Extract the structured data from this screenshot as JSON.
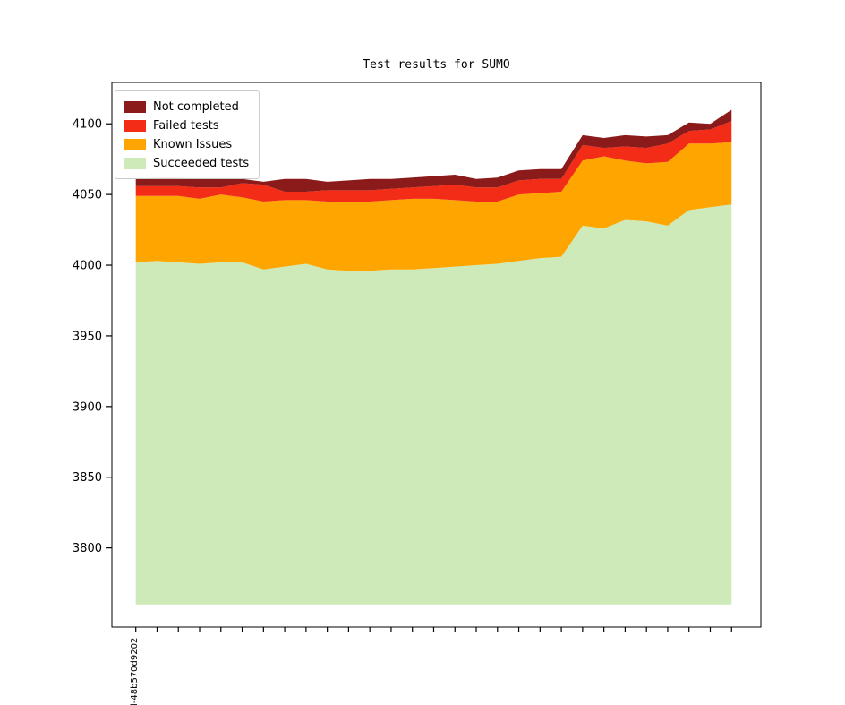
{
  "title": "Test results for SUMO",
  "legend": {
    "entries": [
      {
        "label": "Not completed",
        "color": "#8B1A1A"
      },
      {
        "label": "Failed tests",
        "color": "#F22C16"
      },
      {
        "label": "Known Issues",
        "color": "#FFA500"
      },
      {
        "label": "Succeeded tests",
        "color": "#CEEAB9"
      }
    ]
  },
  "chart_data": {
    "type": "area",
    "stacked": true,
    "title": "Test results for SUMO",
    "grid": false,
    "legend_position": "upper left",
    "x_count": 29,
    "x_first_label": "l-48b570d9202",
    "x_tick_labels": [
      "l-48b570d9202",
      "",
      "",
      "",
      "",
      "",
      "",
      "",
      "",
      "",
      "",
      "",
      "",
      "",
      "",
      "",
      "",
      "",
      "",
      "",
      "",
      "",
      "",
      "",
      "",
      "",
      "",
      "",
      ""
    ],
    "y_ticks": [
      3800,
      3850,
      3900,
      3950,
      4000,
      4050,
      4100
    ],
    "ylim": [
      3744,
      4129.3
    ],
    "baseline": 3760,
    "series": [
      {
        "name": "Succeeded tests",
        "color": "#CEEAB9",
        "absolute": true,
        "values": [
          4002,
          4003,
          4002,
          4001,
          4002,
          4002,
          3997,
          3999,
          4001,
          3997,
          3996,
          3996,
          3997,
          3997,
          3998,
          3999,
          4000,
          4001,
          4003,
          4005,
          4006,
          4028,
          4026,
          4032,
          4031,
          4028,
          4039,
          4041,
          4043
        ]
      },
      {
        "name": "Known Issues",
        "color": "#FFA500",
        "absolute": false,
        "values": [
          47,
          46,
          47,
          46,
          48,
          46,
          48,
          47,
          45,
          48,
          49,
          49,
          49,
          50,
          49,
          47,
          45,
          44,
          47,
          46,
          46,
          46,
          51,
          42,
          41,
          45,
          47,
          45,
          44
        ]
      },
      {
        "name": "Failed tests",
        "color": "#F22C16",
        "absolute": false,
        "values": [
          7,
          7,
          7,
          8,
          5,
          10,
          12,
          6,
          6,
          8,
          8,
          8,
          8,
          8,
          9,
          11,
          10,
          10,
          10,
          10,
          9,
          11,
          6,
          10,
          11,
          13,
          9,
          10,
          15
        ]
      },
      {
        "name": "Not completed",
        "color": "#8B1A1A",
        "absolute": false,
        "values": [
          5,
          6,
          6,
          6,
          6,
          3,
          2,
          9,
          9,
          6,
          7,
          8,
          7,
          7,
          7,
          7,
          6,
          7,
          7,
          7,
          7,
          7,
          7,
          8,
          8,
          6,
          6,
          4,
          8
        ]
      }
    ]
  }
}
